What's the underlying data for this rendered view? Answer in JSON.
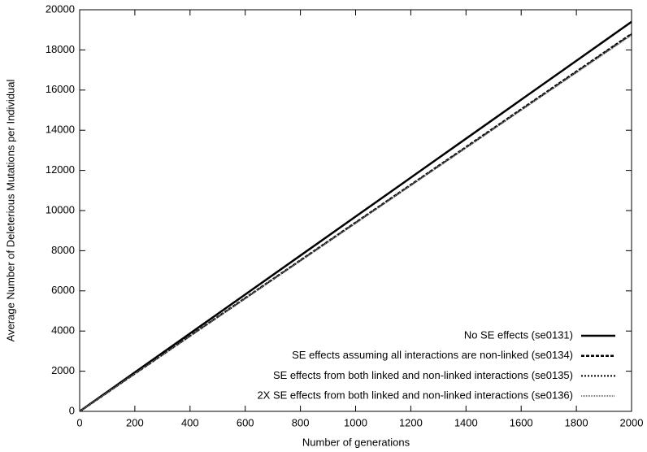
{
  "chart_data": {
    "type": "line",
    "x_label": "Number of generations",
    "y_label": "Average Number of Deleterious Mutations per Individual",
    "x": [
      0,
      200,
      400,
      600,
      800,
      1000,
      1200,
      1400,
      1600,
      1800,
      2000
    ],
    "series": [
      {
        "name": "No SE effects (se0131)",
        "color": "#000000",
        "width": 2.5,
        "dash": "none",
        "values": [
          0,
          1940,
          3880,
          5820,
          7760,
          9700,
          11640,
          13580,
          15520,
          17460,
          19400
        ]
      },
      {
        "name": "SE effects assuming all interactions are non-linked (se0134)",
        "color": "#000000",
        "width": 2.5,
        "dash": "4,2",
        "values": [
          0,
          1880,
          3760,
          5640,
          7520,
          9400,
          11280,
          13160,
          15040,
          16920,
          18800
        ]
      },
      {
        "name": "SE effects from both linked and non-linked interactions (se0135)",
        "color": "#000000",
        "width": 2,
        "dash": "2,2",
        "values": [
          0,
          1880,
          3760,
          5630,
          7510,
          9390,
          11270,
          13140,
          15020,
          16900,
          18780
        ]
      },
      {
        "name": "2X SE effects from both linked and non-linked interactions (se0136)",
        "color": "#777777",
        "width": 2,
        "dash": "1,1",
        "values": [
          0,
          1870,
          3750,
          5620,
          7500,
          9370,
          11250,
          13120,
          15000,
          16870,
          18740
        ]
      }
    ],
    "xlim": [
      0,
      2000
    ],
    "xticks": [
      0,
      200,
      400,
      600,
      800,
      1000,
      1200,
      1400,
      1600,
      1800,
      2000
    ],
    "ylim": [
      0,
      20000
    ],
    "yticks": [
      0,
      2000,
      4000,
      6000,
      8000,
      10000,
      12000,
      14000,
      16000,
      18000,
      20000
    ],
    "grid": false,
    "legend": "lower right"
  }
}
